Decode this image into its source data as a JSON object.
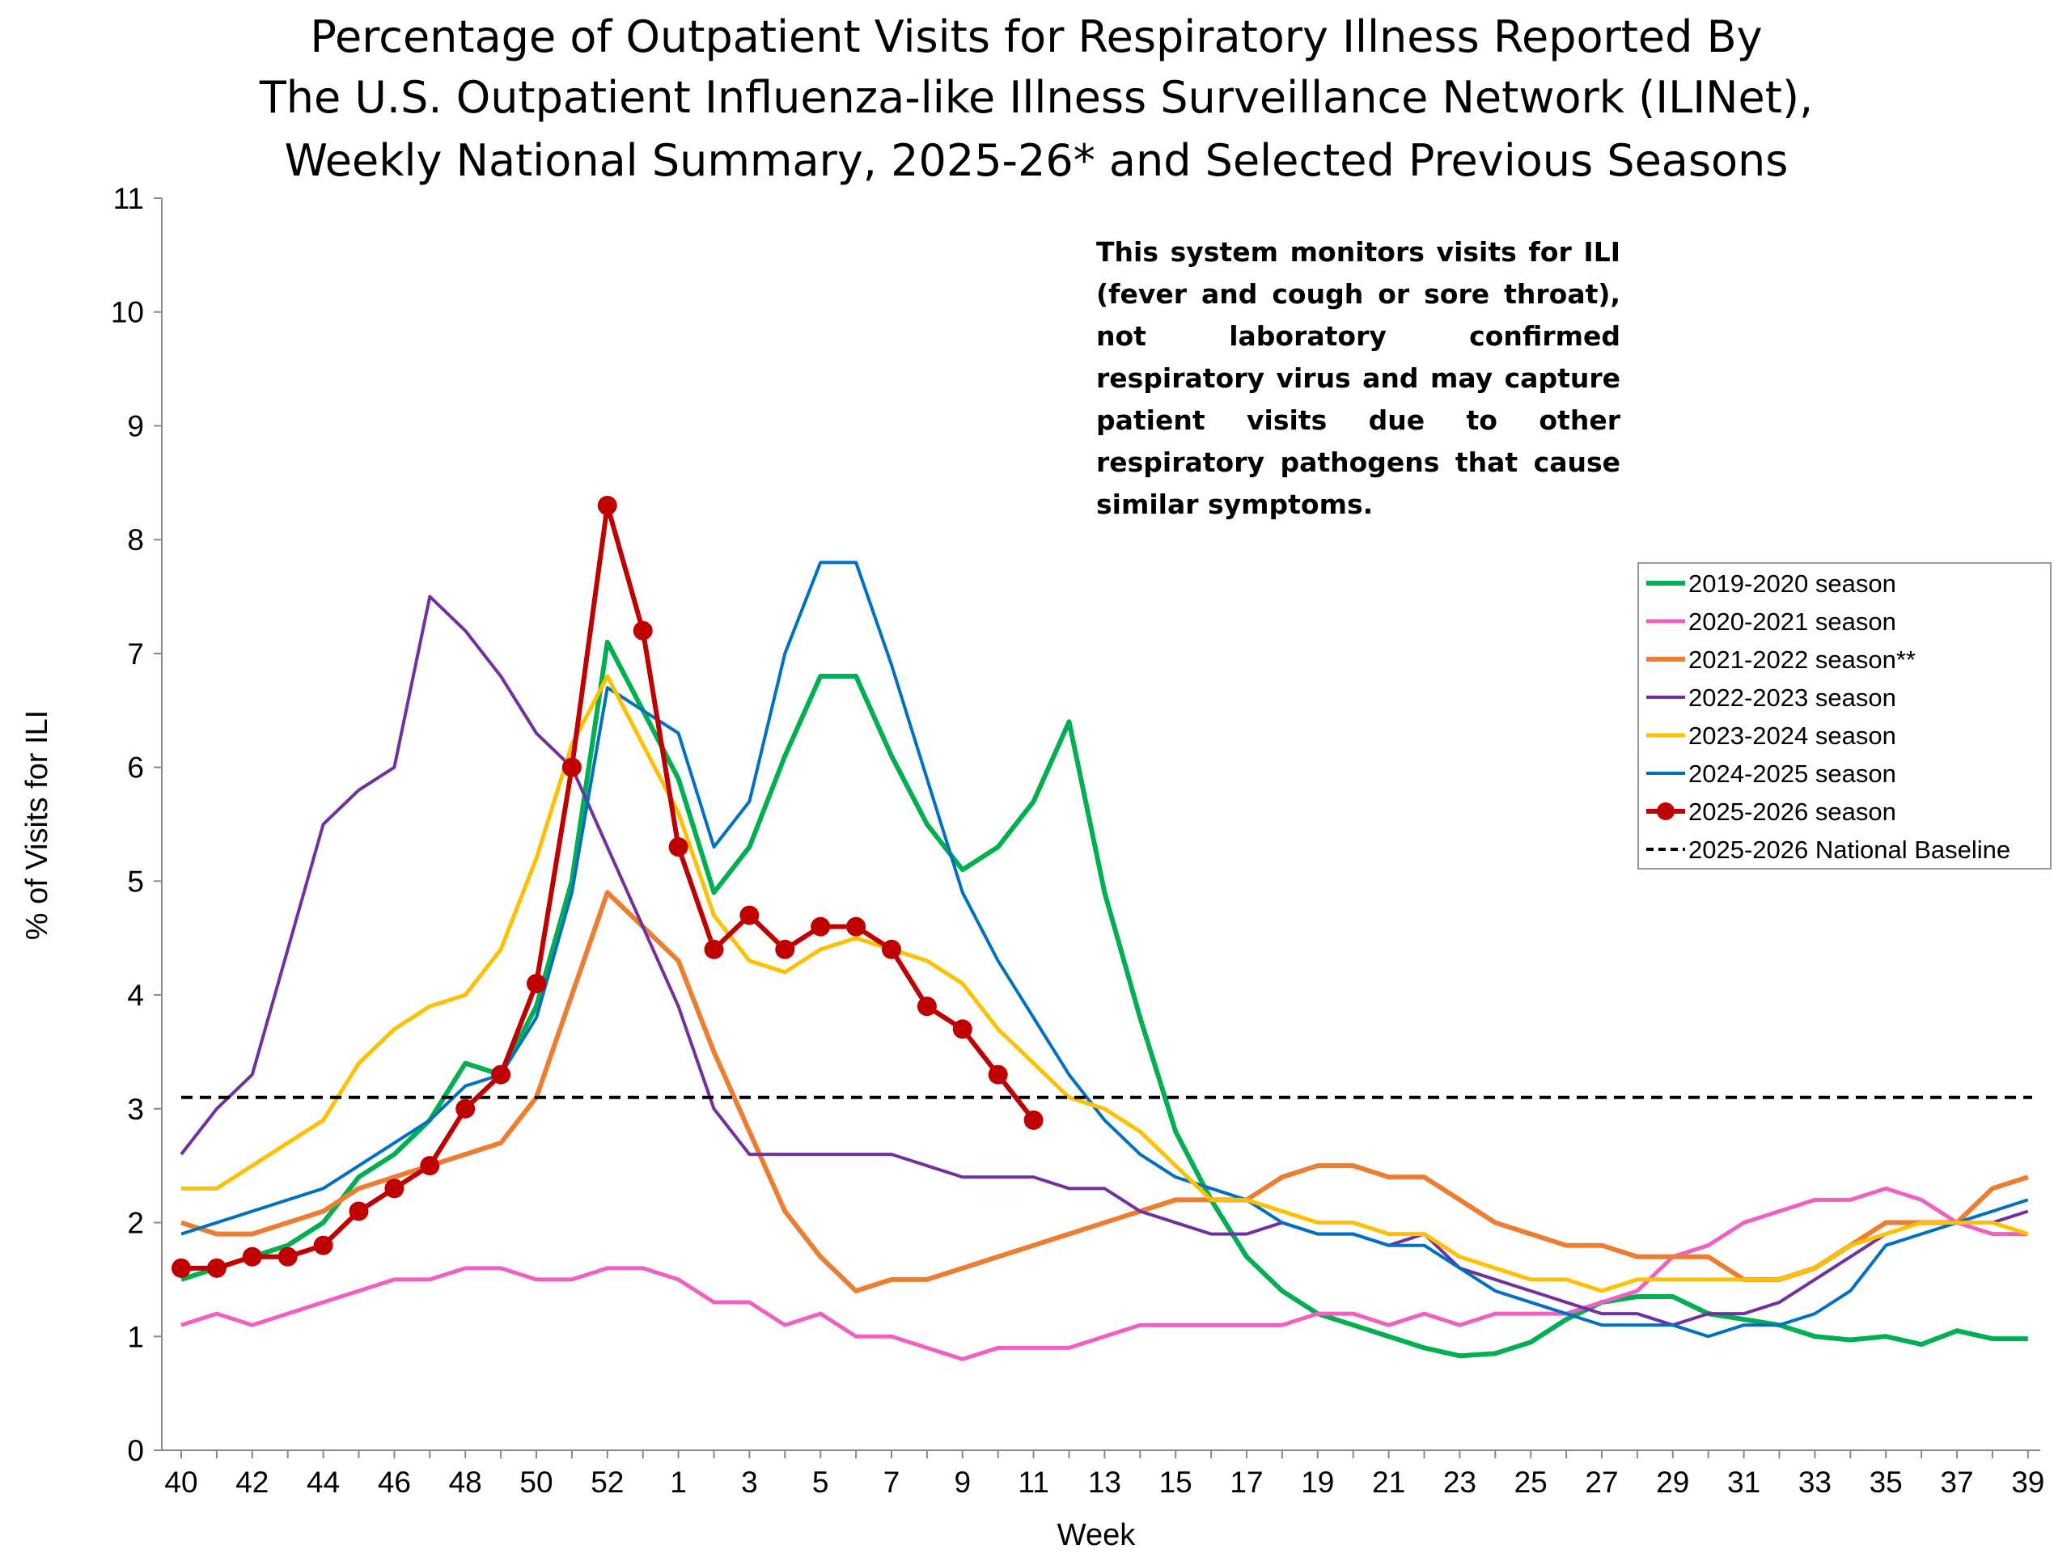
{
  "chart_data": {
    "type": "line",
    "title": [
      "Percentage of Outpatient Visits for Respiratory Illness Reported By",
      "The U.S. Outpatient Influenza-like Illness Surveillance Network (ILINet),",
      "Weekly National Summary, 2025-26* and Selected Previous Seasons"
    ],
    "xlabel": "Week",
    "ylabel": "% of Visits for ILI",
    "ylim": [
      0,
      11
    ],
    "yticks": [
      "0",
      "1",
      "2",
      "3",
      "4",
      "5",
      "6",
      "7",
      "8",
      "9",
      "10",
      "11"
    ],
    "weeks": [
      40,
      41,
      42,
      43,
      44,
      45,
      46,
      47,
      48,
      49,
      50,
      51,
      52,
      53,
      1,
      2,
      3,
      4,
      5,
      6,
      7,
      8,
      9,
      10,
      11,
      12,
      13,
      14,
      15,
      16,
      17,
      18,
      19,
      20,
      21,
      22,
      23,
      24,
      25,
      26,
      27,
      28,
      29,
      30,
      31,
      32,
      33,
      34,
      35,
      36,
      37,
      38,
      39
    ],
    "xtick_labels": [
      "40",
      "42",
      "44",
      "46",
      "48",
      "50",
      "52",
      "1",
      "3",
      "5",
      "7",
      "9",
      "11",
      "13",
      "15",
      "17",
      "19",
      "21",
      "23",
      "25",
      "27",
      "29",
      "31",
      "33",
      "35",
      "37",
      "39"
    ],
    "annotation": "This system monitors visits for ILI (fever and cough or sore throat), not laboratory confirmed respiratory virus and may capture patient visits due to other respiratory pathogens that cause similar symptoms.",
    "legend_position": "right",
    "series": [
      {
        "name": "2019-2020 season",
        "color": "#00B050",
        "width": 6,
        "values": [
          1.5,
          1.6,
          1.7,
          1.8,
          2.0,
          2.4,
          2.6,
          2.9,
          3.4,
          3.3,
          3.9,
          5.0,
          7.1,
          6.5,
          5.9,
          4.9,
          5.3,
          6.1,
          6.8,
          6.8,
          6.1,
          5.5,
          5.1,
          5.3,
          5.7,
          6.4,
          4.9,
          3.8,
          2.8,
          2.2,
          1.7,
          1.4,
          1.2,
          1.1,
          1.0,
          0.9,
          0.83,
          0.85,
          0.95,
          1.15,
          1.3,
          1.35,
          1.35,
          1.2,
          1.15,
          1.1,
          1.0,
          0.97,
          1.0,
          0.93,
          1.05,
          0.98,
          0.98
        ]
      },
      {
        "name": "2020-2021 season",
        "color": "#F060C0",
        "width": 5,
        "values": [
          1.1,
          1.2,
          1.1,
          1.2,
          1.3,
          1.4,
          1.5,
          1.5,
          1.6,
          1.6,
          1.5,
          1.5,
          1.6,
          1.6,
          1.5,
          1.3,
          1.3,
          1.1,
          1.2,
          1.0,
          1.0,
          0.9,
          0.8,
          0.9,
          0.9,
          0.9,
          1.0,
          1.1,
          1.1,
          1.1,
          1.1,
          1.1,
          1.2,
          1.2,
          1.1,
          1.2,
          1.1,
          1.2,
          1.2,
          1.2,
          1.3,
          1.4,
          1.7,
          1.8,
          2.0,
          2.1,
          2.2,
          2.2,
          2.3,
          2.2,
          2.0,
          1.9,
          1.9
        ]
      },
      {
        "name": "2021-2022 season**",
        "color": "#ED7D31",
        "width": 6,
        "values": [
          2.0,
          1.9,
          1.9,
          2.0,
          2.1,
          2.3,
          2.4,
          2.5,
          2.6,
          2.7,
          3.1,
          4.0,
          4.9,
          4.6,
          4.3,
          3.5,
          2.8,
          2.1,
          1.7,
          1.4,
          1.5,
          1.5,
          1.6,
          1.7,
          1.8,
          1.9,
          2.0,
          2.1,
          2.2,
          2.2,
          2.2,
          2.4,
          2.5,
          2.5,
          2.4,
          2.4,
          2.2,
          2.0,
          1.9,
          1.8,
          1.8,
          1.7,
          1.7,
          1.7,
          1.5,
          1.5,
          1.6,
          1.8,
          2.0,
          2.0,
          2.0,
          2.3,
          2.4
        ]
      },
      {
        "name": "2022-2023 season",
        "color": "#7030A0",
        "width": 4,
        "values": [
          2.6,
          3.0,
          3.3,
          4.4,
          5.5,
          5.8,
          6.0,
          7.5,
          7.2,
          6.8,
          6.3,
          6.0,
          5.3,
          4.6,
          3.9,
          3.0,
          2.6,
          2.6,
          2.6,
          2.6,
          2.6,
          2.5,
          2.4,
          2.4,
          2.4,
          2.3,
          2.3,
          2.1,
          2.0,
          1.9,
          1.9,
          2.0,
          1.9,
          1.9,
          1.8,
          1.9,
          1.6,
          1.5,
          1.4,
          1.3,
          1.2,
          1.2,
          1.1,
          1.2,
          1.2,
          1.3,
          1.5,
          1.7,
          1.9,
          2.0,
          2.0,
          2.0,
          2.1
        ]
      },
      {
        "name": "2023-2024 season",
        "color": "#FFC000",
        "width": 5,
        "values": [
          2.3,
          2.3,
          2.5,
          2.7,
          2.9,
          3.4,
          3.7,
          3.9,
          4.0,
          4.4,
          5.2,
          6.2,
          6.8,
          6.2,
          5.6,
          4.7,
          4.3,
          4.2,
          4.4,
          4.5,
          4.4,
          4.3,
          4.1,
          3.7,
          3.4,
          3.1,
          3.0,
          2.8,
          2.5,
          2.2,
          2.2,
          2.1,
          2.0,
          2.0,
          1.9,
          1.9,
          1.7,
          1.6,
          1.5,
          1.5,
          1.4,
          1.5,
          1.5,
          1.5,
          1.5,
          1.5,
          1.6,
          1.8,
          1.9,
          2.0,
          2.0,
          2.0,
          1.9
        ]
      },
      {
        "name": "2024-2025 season",
        "color": "#0070C0",
        "width": 4,
        "values": [
          1.9,
          2.0,
          2.1,
          2.2,
          2.3,
          2.5,
          2.7,
          2.9,
          3.2,
          3.3,
          3.8,
          4.9,
          6.7,
          6.5,
          6.3,
          5.3,
          5.7,
          7.0,
          7.8,
          7.8,
          6.9,
          5.9,
          4.9,
          4.3,
          3.8,
          3.3,
          2.9,
          2.6,
          2.4,
          2.3,
          2.2,
          2.0,
          1.9,
          1.9,
          1.8,
          1.8,
          1.6,
          1.4,
          1.3,
          1.2,
          1.1,
          1.1,
          1.1,
          1.0,
          1.1,
          1.1,
          1.2,
          1.4,
          1.8,
          1.9,
          2.0,
          2.1,
          2.2
        ]
      },
      {
        "name": "2025-2026 season",
        "color": "#C00000",
        "width": 6,
        "markers": true,
        "values": [
          1.6,
          1.6,
          1.7,
          1.7,
          1.8,
          2.1,
          2.3,
          2.5,
          3.0,
          3.3,
          4.1,
          6.0,
          8.3,
          7.2,
          5.3,
          4.4,
          4.7,
          4.4,
          4.6,
          4.6,
          4.4,
          3.9,
          3.7,
          3.3,
          2.9
        ]
      },
      {
        "name": "2025-2026 National Baseline",
        "color": "#000000",
        "width": 4,
        "dashed": true,
        "values": [
          3.1
        ]
      }
    ]
  }
}
